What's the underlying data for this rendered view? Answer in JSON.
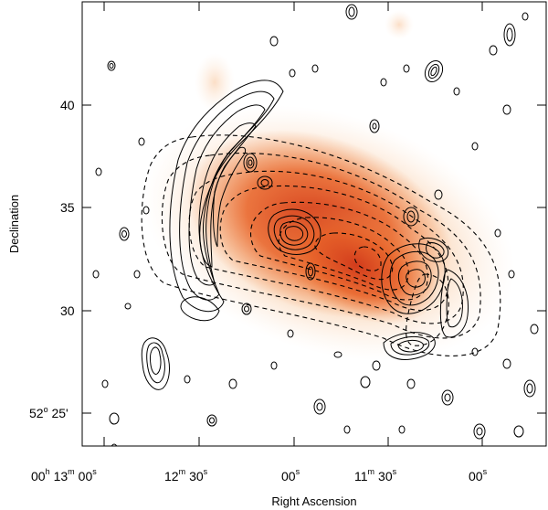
{
  "figure": {
    "x_axis_label": "Right Ascension",
    "y_axis_label": "Declination",
    "y_tick_labels": [
      {
        "text": "40",
        "value": 40
      },
      {
        "text": "35",
        "value": 35
      },
      {
        "text": "30",
        "value": 30
      },
      {
        "text_main": "52",
        "text_sup": "o",
        "text_rest": " 25'",
        "value": 25
      }
    ],
    "x_tick_labels": [
      {
        "h": "00",
        "hu": "h",
        "m": "13",
        "mu": "m",
        "s": "00",
        "su": "s"
      },
      {
        "m": "12",
        "mu": "m",
        "s": "30",
        "su": "s"
      },
      {
        "s": "00",
        "su": "s"
      },
      {
        "m": "11",
        "mu": "m",
        "s": "30",
        "su": "s"
      },
      {
        "s": "00",
        "su": "s"
      }
    ],
    "colors": {
      "background": "#ffffff",
      "emission_core": "#c8321a",
      "emission_mid": "#e8642a",
      "emission_outer": "#f8c9a0",
      "contours": "#000000"
    }
  }
}
